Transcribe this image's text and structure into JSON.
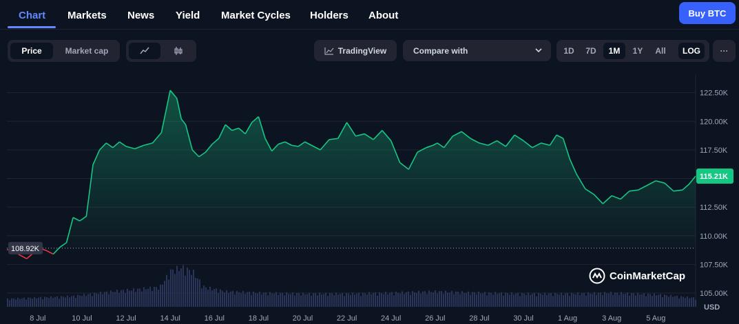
{
  "nav": {
    "tabs": [
      "Chart",
      "Markets",
      "News",
      "Yield",
      "Market Cycles",
      "Holders",
      "About"
    ],
    "active": "Chart",
    "buy_label": "Buy BTC"
  },
  "toolbar": {
    "metric_tabs": [
      "Price",
      "Market cap"
    ],
    "active_metric": "Price",
    "tradingview_label": "TradingView",
    "compare_label": "Compare with",
    "ranges": [
      "1D",
      "7D",
      "1M",
      "1Y",
      "All",
      "LOG"
    ],
    "active_range": "1M",
    "more_label": "···"
  },
  "watermark": "CoinMarketCap",
  "colors": {
    "up": "#16c784",
    "down": "#ea3943",
    "volume": "#2b3459",
    "accent": "#3861fb"
  },
  "chart_data": {
    "type": "area",
    "currency_label": "USD",
    "y_ticks": [
      "122.50K",
      "120.00K",
      "117.50K",
      "115.00K",
      "112.50K",
      "110.00K",
      "107.50K",
      "105.00K"
    ],
    "y_tick_values": [
      122500,
      120000,
      117500,
      115000,
      112500,
      110000,
      107500,
      105000
    ],
    "ylim": [
      103800,
      124100
    ],
    "x_ticks": [
      "8 Jul",
      "10 Jul",
      "12 Jul",
      "14 Jul",
      "16 Jul",
      "18 Jul",
      "20 Jul",
      "22 Jul",
      "24 Jul",
      "26 Jul",
      "28 Jul",
      "30 Jul",
      "1 Aug",
      "3 Aug",
      "5 Aug"
    ],
    "x_tick_days": [
      2,
      4,
      6,
      8,
      10,
      12,
      14,
      16,
      18,
      20,
      22,
      24,
      26,
      28,
      30
    ],
    "xlim": [
      0.6,
      31.8
    ],
    "reference_value": 108920,
    "reference_label": "108.92K",
    "current_label": "115.21K",
    "series": [
      {
        "x": [
          0.6,
          0.9,
          1.2,
          1.5,
          1.8,
          2.1,
          2.4,
          2.7,
          3.0,
          3.3,
          3.6,
          3.9,
          4.2,
          4.5,
          4.8,
          5.1,
          5.4,
          5.7,
          6.0,
          6.4,
          6.8,
          7.2,
          7.6,
          8.0,
          8.3,
          8.5,
          8.7,
          9.0,
          9.3,
          9.6,
          9.9,
          10.2,
          10.5,
          10.8,
          11.1,
          11.4,
          11.7,
          12.0,
          12.3,
          12.6,
          12.9,
          13.2,
          13.5,
          13.8,
          14.1,
          14.4,
          14.8,
          15.2,
          15.6,
          16.0,
          16.4,
          16.8,
          17.2,
          17.6,
          18.0,
          18.4,
          18.8,
          19.2,
          19.6,
          19.9,
          20.1,
          20.4,
          20.8,
          21.2,
          21.6,
          22.0,
          22.4,
          22.8,
          23.2,
          23.6,
          24.0,
          24.4,
          24.8,
          25.2,
          25.5,
          25.8,
          26.1,
          26.4,
          26.8,
          27.2,
          27.6,
          28.0,
          28.4,
          28.8,
          29.2,
          29.6,
          30.0,
          30.4,
          30.8,
          31.2,
          31.5,
          31.8
        ],
        "y": [
          108800,
          108700,
          108300,
          108000,
          108500,
          108900,
          108700,
          108400,
          109000,
          109400,
          111600,
          111300,
          111700,
          116200,
          117500,
          118100,
          117700,
          118200,
          117800,
          117600,
          117900,
          118100,
          119000,
          122700,
          122000,
          120200,
          119700,
          117500,
          116900,
          117300,
          118000,
          118500,
          119700,
          119200,
          119400,
          118900,
          119900,
          120400,
          118500,
          117400,
          118000,
          118200,
          117900,
          117800,
          118200,
          117900,
          117500,
          118400,
          118500,
          119900,
          118700,
          118900,
          118400,
          119200,
          118300,
          116400,
          115800,
          117300,
          117700,
          117900,
          118100,
          117700,
          118700,
          119100,
          118500,
          118100,
          117900,
          118300,
          117800,
          118800,
          118300,
          117700,
          118100,
          117900,
          118800,
          118500,
          116700,
          115400,
          114100,
          113600,
          112800,
          113500,
          113200,
          113900,
          114000,
          114400,
          114800,
          114600,
          113900,
          114000,
          114500,
          115210
        ]
      }
    ],
    "volume": {
      "x": [
        0.6,
        1.5,
        2.5,
        3.5,
        4.5,
        5.5,
        6.5,
        7.5,
        8.0,
        8.5,
        9.0,
        9.5,
        10.5,
        12,
        14,
        16,
        18,
        20,
        22,
        24,
        26,
        28,
        30,
        31.8
      ],
      "relative": [
        0.18,
        0.2,
        0.22,
        0.24,
        0.3,
        0.36,
        0.4,
        0.45,
        0.82,
        0.9,
        0.8,
        0.45,
        0.35,
        0.32,
        0.3,
        0.3,
        0.32,
        0.35,
        0.32,
        0.3,
        0.3,
        0.32,
        0.28,
        0.2
      ]
    }
  }
}
